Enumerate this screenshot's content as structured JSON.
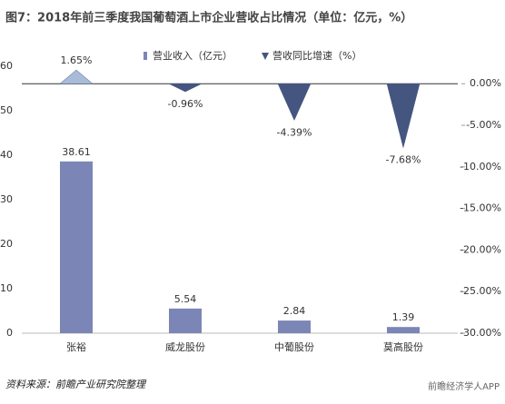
{
  "chart_data": {
    "type": "bar_triangle",
    "title": "图7：2018年前三季度我国葡萄酒上市企业营收占比情况（单位：亿元，%）",
    "source": "资料来源：前瞻产业研究院整理",
    "watermark": "前瞻经济学人APP",
    "categories": [
      "张裕",
      "威龙股份",
      "中葡股份",
      "莫高股份"
    ],
    "series": [
      {
        "name": "营业收入（亿元）",
        "color": "#7b86b6",
        "values": [
          38.61,
          5.54,
          2.84,
          1.39
        ]
      },
      {
        "name": "营收同比增速（%）",
        "color": "#44557f",
        "axis": "y2",
        "values": [
          1.65,
          -0.96,
          -4.39,
          -7.68
        ],
        "value_labels": [
          "1.65%",
          "-0.96%",
          "-4.39%",
          "-7.68%"
        ]
      }
    ],
    "ylim": [
      0,
      60
    ],
    "yticks": [
      0,
      10,
      20,
      30,
      40,
      50,
      60
    ],
    "y2lim": [
      -30,
      2.1
    ],
    "y2ticks": [
      {
        "value": 0,
        "label": "0.00%"
      },
      {
        "value": -5,
        "label": "-5.00%"
      },
      {
        "value": -10,
        "label": "-10.00%"
      },
      {
        "value": -15,
        "label": "-15.00%"
      },
      {
        "value": -20,
        "label": "-20.00%"
      },
      {
        "value": -25,
        "label": "-25.00%"
      },
      {
        "value": -30,
        "label": "-30.00%"
      }
    ]
  }
}
